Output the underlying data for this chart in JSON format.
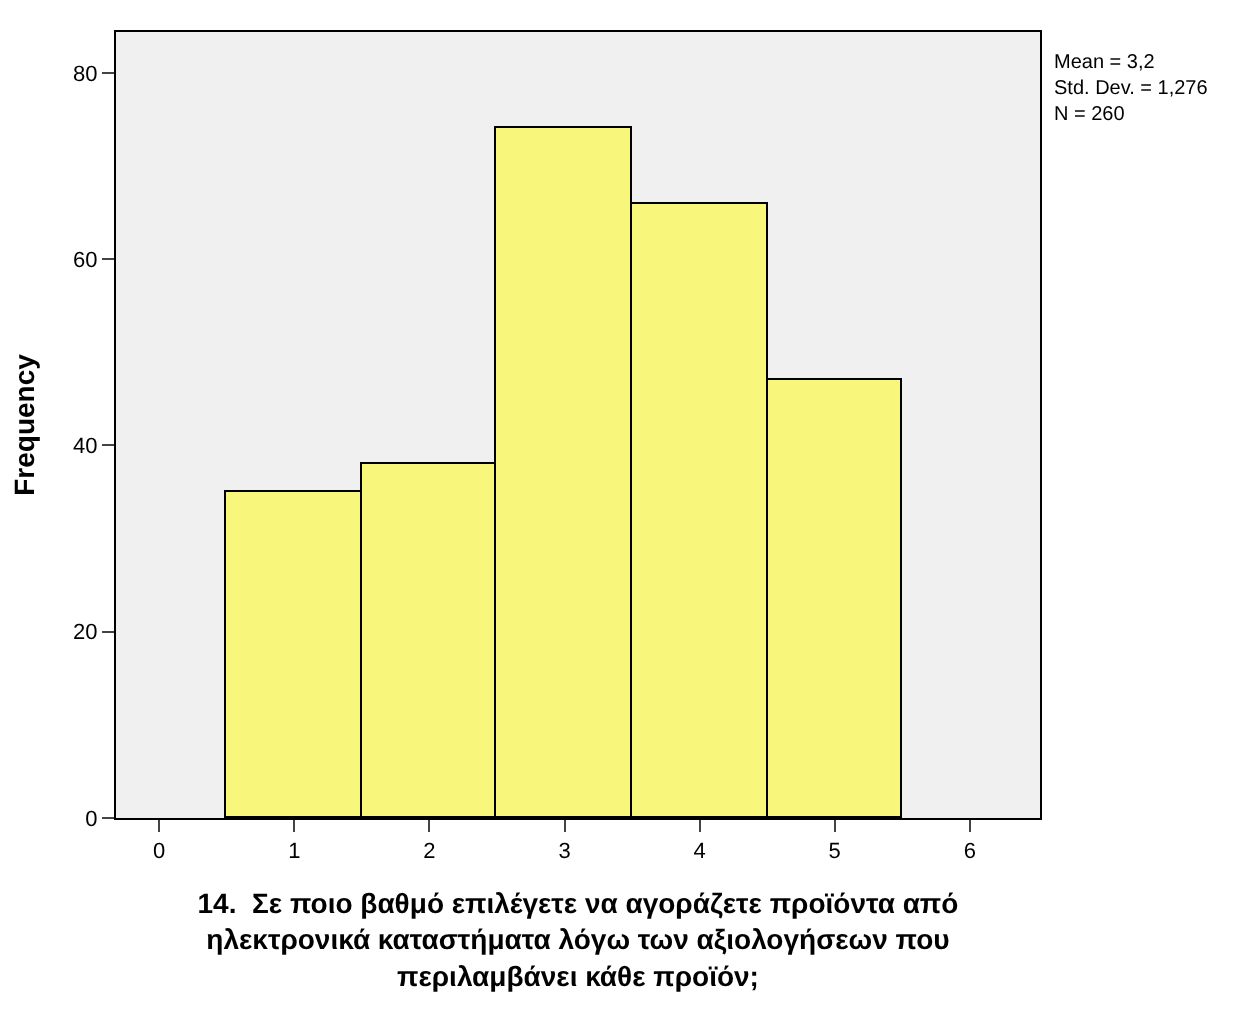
{
  "chart_data": {
    "type": "histogram",
    "xlabel": "14.  Σε ποιο βαθμό επιλέγετε να αγοράζετε προϊόντα από ηλεκτρονικά καταστήματα λόγω των αξιολογήσεων που περιλαμβάνει κάθε προϊόν;",
    "ylabel": "Frequency",
    "bins": [
      0.5,
      1.5,
      2.5,
      3.5,
      4.5,
      5.5
    ],
    "values": [
      35,
      38,
      74,
      66,
      47
    ],
    "color": "#f9f77b",
    "xlim": [
      -0.32,
      6.52
    ],
    "xticks": [
      0,
      1,
      2,
      3,
      4,
      5,
      6
    ],
    "ylim": [
      0,
      84.4
    ],
    "yticks": [
      0,
      20,
      40,
      60,
      80
    ],
    "annotations": [
      "Mean = 3,2",
      "Std. Dev. = 1,276",
      "N = 260"
    ],
    "grid": false
  }
}
